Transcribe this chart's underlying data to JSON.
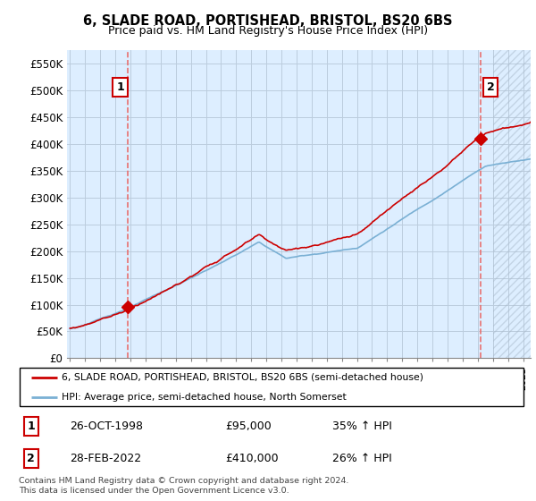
{
  "title": "6, SLADE ROAD, PORTISHEAD, BRISTOL, BS20 6BS",
  "subtitle": "Price paid vs. HM Land Registry's House Price Index (HPI)",
  "ylabel_ticks": [
    "£0",
    "£50K",
    "£100K",
    "£150K",
    "£200K",
    "£250K",
    "£300K",
    "£350K",
    "£400K",
    "£450K",
    "£500K",
    "£550K"
  ],
  "ytick_vals": [
    0,
    50000,
    100000,
    150000,
    200000,
    250000,
    300000,
    350000,
    400000,
    450000,
    500000,
    550000
  ],
  "ylim": [
    0,
    575000
  ],
  "xlim_start": 1994.8,
  "xlim_end": 2025.5,
  "sale1_x": 1998.82,
  "sale1_y": 95000,
  "sale1_label": "1",
  "sale2_x": 2022.16,
  "sale2_y": 410000,
  "sale2_label": "2",
  "sale_color": "#cc0000",
  "hpi_color": "#7ab0d4",
  "vline_color": "#e87070",
  "plot_bg_color": "#ddeeff",
  "legend_entry1": "6, SLADE ROAD, PORTISHEAD, BRISTOL, BS20 6BS (semi-detached house)",
  "legend_entry2": "HPI: Average price, semi-detached house, North Somerset",
  "table_rows": [
    [
      "1",
      "26-OCT-1998",
      "£95,000",
      "35% ↑ HPI"
    ],
    [
      "2",
      "28-FEB-2022",
      "£410,000",
      "26% ↑ HPI"
    ]
  ],
  "footnote1": "Contains HM Land Registry data © Crown copyright and database right 2024.",
  "footnote2": "This data is licensed under the Open Government Licence v3.0.",
  "bg_color": "#ffffff",
  "grid_color": "#bbccdd"
}
